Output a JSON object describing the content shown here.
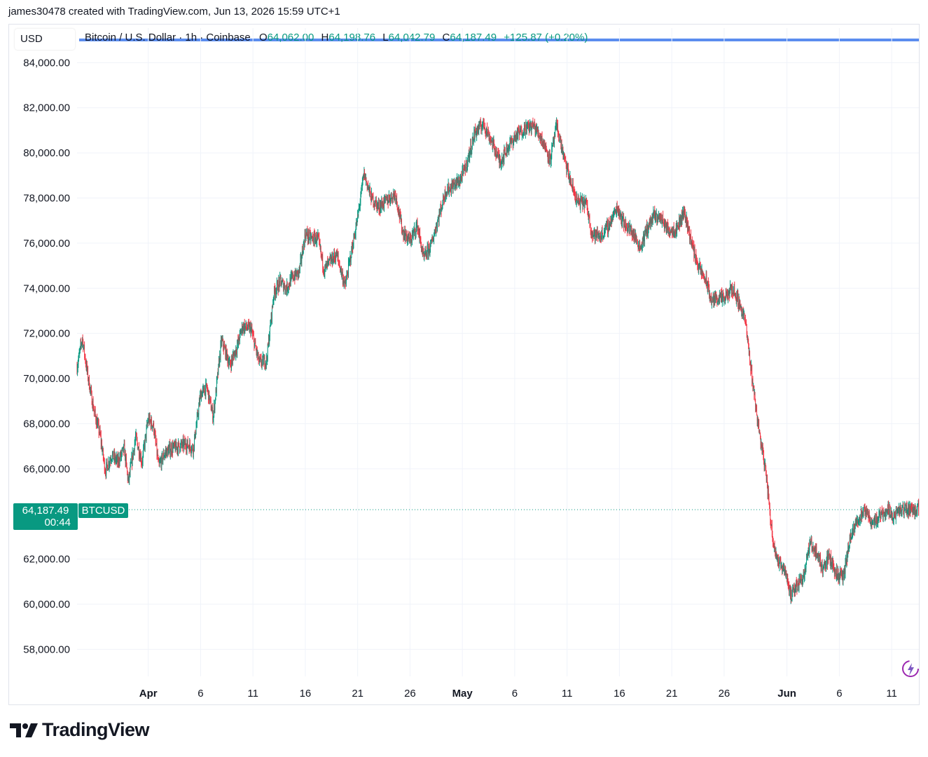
{
  "credit": "james30478 created with TradingView.com, Jun 13, 2026 15:59 UTC+1",
  "currency_label": "USD",
  "legend": {
    "symbol": "Bitcoin / U.S. Dollar · 1h · Coinbase",
    "o_label": "O",
    "open": "64,062.00",
    "h_label": "H",
    "high": "64,198.76",
    "l_label": "L",
    "low": "64,042.79",
    "c_label": "C",
    "close": "64,187.49",
    "change": "+125.87 (+0.20%)"
  },
  "last_price": {
    "value": "64,187.49",
    "countdown": "00:44",
    "ticker": "BTCUSD"
  },
  "brand": "TradingView",
  "colors": {
    "up": "#089981",
    "down": "#f23645",
    "line": "#5b8def",
    "grid": "#f0f3fa"
  },
  "chart_data": {
    "type": "candlestick",
    "title": "Bitcoin / U.S. Dollar · 1h · Coinbase",
    "ylim": [
      56800,
      84600
    ],
    "y_ticks": [
      84000,
      82000,
      80000,
      78000,
      76000,
      74000,
      72000,
      70000,
      68000,
      66000,
      62000,
      60000,
      58000
    ],
    "y_tick_labels": [
      "84,000.00",
      "82,000.00",
      "80,000.00",
      "78,000.00",
      "76,000.00",
      "74,000.00",
      "72,000.00",
      "70,000.00",
      "68,000.00",
      "66,000.00",
      "62,000.00",
      "60,000.00",
      "58,000.00"
    ],
    "x_ticks": [
      {
        "label": "Apr",
        "day": 0,
        "bold": true
      },
      {
        "label": "6",
        "day": 5
      },
      {
        "label": "11",
        "day": 10
      },
      {
        "label": "16",
        "day": 15
      },
      {
        "label": "21",
        "day": 20
      },
      {
        "label": "26",
        "day": 25
      },
      {
        "label": "May",
        "day": 30,
        "bold": true
      },
      {
        "label": "6",
        "day": 35
      },
      {
        "label": "11",
        "day": 40
      },
      {
        "label": "16",
        "day": 45
      },
      {
        "label": "21",
        "day": 50
      },
      {
        "label": "26",
        "day": 55
      },
      {
        "label": "Jun",
        "day": 61,
        "bold": true
      },
      {
        "label": "6",
        "day": 66
      },
      {
        "label": "11",
        "day": 71
      }
    ],
    "x_range_days": [
      -6.8,
      73.6
    ],
    "price_path": [
      [
        -6.8,
        70500
      ],
      [
        -6.3,
        71800
      ],
      [
        -5.8,
        70200
      ],
      [
        -5.2,
        68600
      ],
      [
        -4.6,
        67500
      ],
      [
        -4.1,
        65900
      ],
      [
        -3.5,
        66600
      ],
      [
        -2.9,
        66300
      ],
      [
        -2.3,
        66900
      ],
      [
        -1.9,
        65400
      ],
      [
        -1.2,
        67400
      ],
      [
        -0.6,
        66300
      ],
      [
        0,
        68200
      ],
      [
        0.5,
        67900
      ],
      [
        1,
        66100
      ],
      [
        1.6,
        66700
      ],
      [
        2.2,
        66900
      ],
      [
        3,
        67000
      ],
      [
        3.6,
        67100
      ],
      [
        4.3,
        66900
      ],
      [
        5,
        69300
      ],
      [
        5.6,
        69600
      ],
      [
        6.2,
        68300
      ],
      [
        7,
        71700
      ],
      [
        7.8,
        70600
      ],
      [
        8.4,
        71300
      ],
      [
        9,
        72300
      ],
      [
        9.8,
        72200
      ],
      [
        10.6,
        70700
      ],
      [
        11.3,
        70800
      ],
      [
        12,
        73800
      ],
      [
        12.6,
        74300
      ],
      [
        13.2,
        74000
      ],
      [
        13.8,
        74500
      ],
      [
        14.4,
        74700
      ],
      [
        15,
        76400
      ],
      [
        15.6,
        76200
      ],
      [
        16.2,
        76200
      ],
      [
        16.8,
        74800
      ],
      [
        17.4,
        75200
      ],
      [
        18,
        75500
      ],
      [
        18.8,
        74100
      ],
      [
        19.4,
        75600
      ],
      [
        20,
        77100
      ],
      [
        20.6,
        79100
      ],
      [
        21.3,
        78000
      ],
      [
        22,
        77600
      ],
      [
        22.8,
        77900
      ],
      [
        23.6,
        78200
      ],
      [
        24.3,
        76500
      ],
      [
        25,
        76100
      ],
      [
        25.7,
        76800
      ],
      [
        26.3,
        75300
      ],
      [
        27,
        75900
      ],
      [
        27.7,
        77100
      ],
      [
        28.4,
        78300
      ],
      [
        29,
        78500
      ],
      [
        29.8,
        78800
      ],
      [
        30.4,
        79500
      ],
      [
        31.2,
        80900
      ],
      [
        32,
        81300
      ],
      [
        32.8,
        80500
      ],
      [
        33.6,
        79600
      ],
      [
        34.4,
        80300
      ],
      [
        35.2,
        80800
      ],
      [
        36,
        81100
      ],
      [
        36.8,
        81200
      ],
      [
        37.6,
        80600
      ],
      [
        38.4,
        79700
      ],
      [
        39,
        81200
      ],
      [
        39.8,
        79600
      ],
      [
        40.4,
        78600
      ],
      [
        41,
        77800
      ],
      [
        41.8,
        77800
      ],
      [
        42.4,
        76400
      ],
      [
        43.2,
        76300
      ],
      [
        44,
        76800
      ],
      [
        44.8,
        77600
      ],
      [
        45.4,
        76900
      ],
      [
        46.2,
        76500
      ],
      [
        47,
        75800
      ],
      [
        47.6,
        76600
      ],
      [
        48.3,
        77200
      ],
      [
        49,
        77100
      ],
      [
        49.6,
        76600
      ],
      [
        50.4,
        76600
      ],
      [
        51.2,
        77400
      ],
      [
        52,
        75800
      ],
      [
        52.6,
        74900
      ],
      [
        53.3,
        74300
      ],
      [
        53.8,
        73400
      ],
      [
        54.3,
        73600
      ],
      [
        55,
        73500
      ],
      [
        55.8,
        74000
      ],
      [
        56.4,
        73400
      ],
      [
        57,
        72600
      ],
      [
        57.6,
        70300
      ],
      [
        58.3,
        67800
      ],
      [
        59,
        65800
      ],
      [
        59.6,
        63000
      ],
      [
        60.2,
        61800
      ],
      [
        60.8,
        61600
      ],
      [
        61.4,
        60300
      ],
      [
        62,
        60900
      ],
      [
        62.6,
        61300
      ],
      [
        63.2,
        62700
      ],
      [
        63.8,
        62300
      ],
      [
        64.4,
        61600
      ],
      [
        65,
        62100
      ],
      [
        65.8,
        61300
      ],
      [
        66.4,
        61200
      ],
      [
        67,
        62800
      ],
      [
        67.8,
        63800
      ],
      [
        68.5,
        64100
      ],
      [
        69.2,
        63600
      ],
      [
        70,
        64000
      ],
      [
        70.6,
        64200
      ],
      [
        71.2,
        63900
      ],
      [
        71.8,
        64150
      ],
      [
        72.5,
        64200
      ],
      [
        73.6,
        64187
      ]
    ]
  }
}
